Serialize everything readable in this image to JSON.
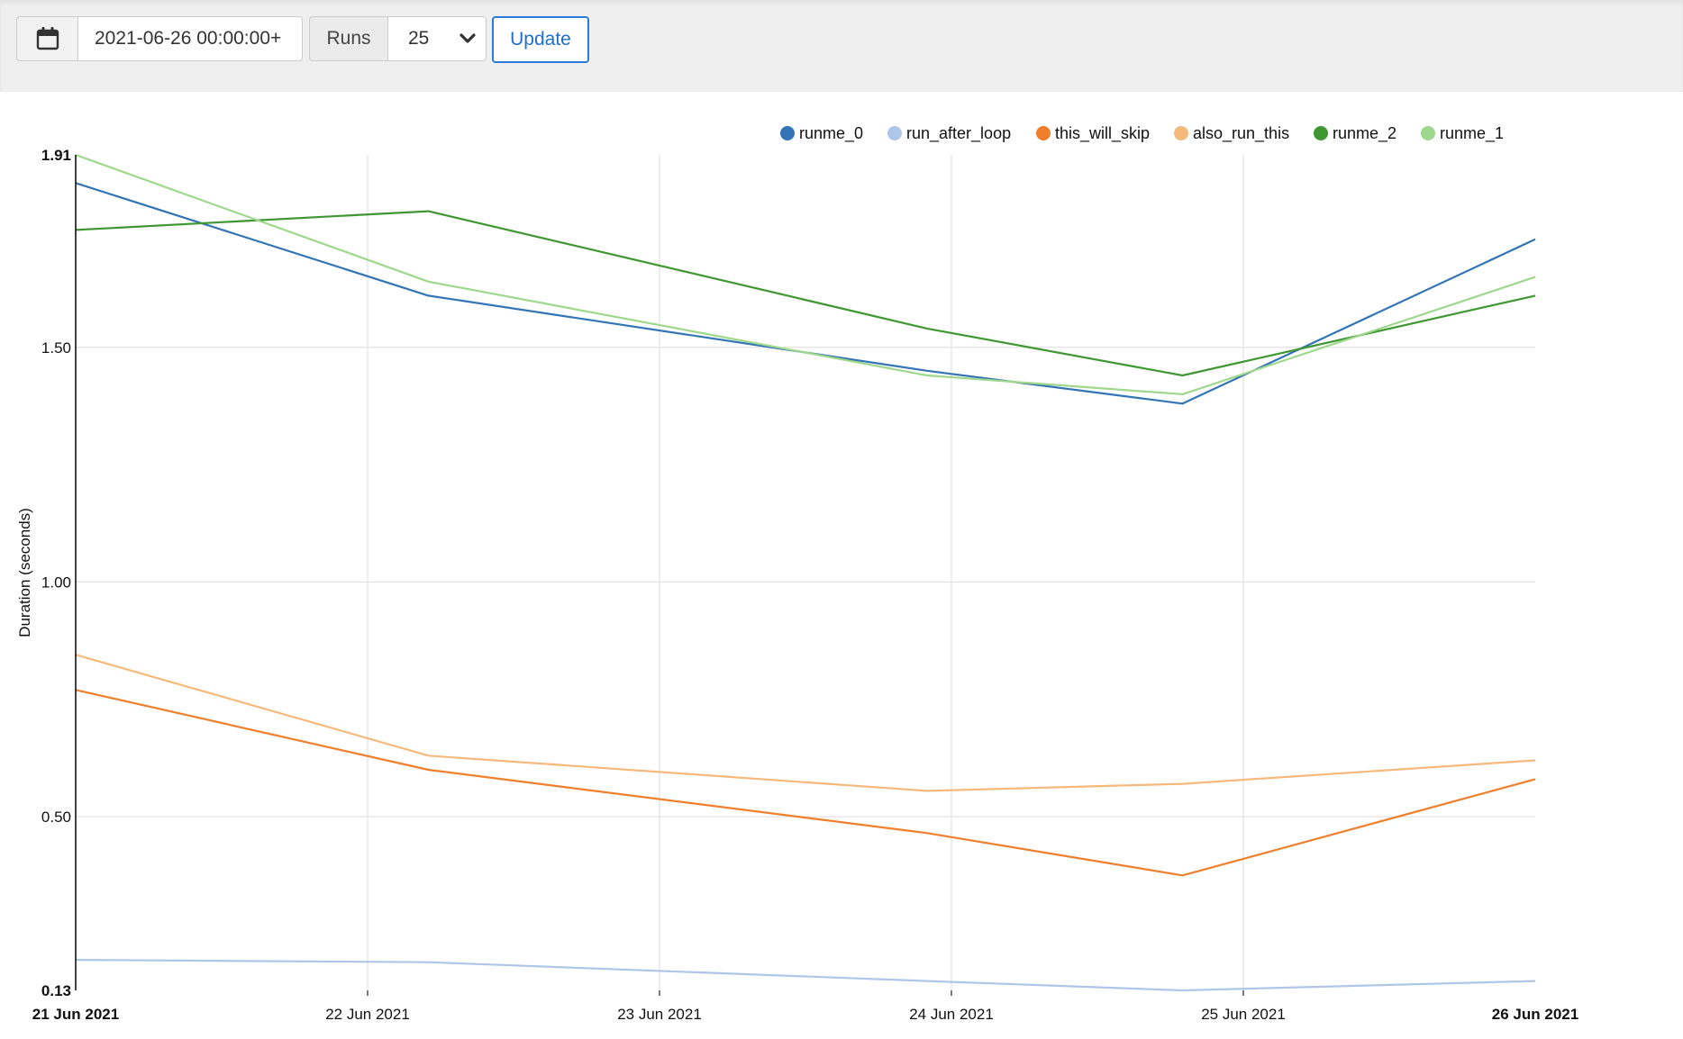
{
  "toolbar": {
    "date_value": "2021-06-26 00:00:00+",
    "runs_label": "Runs",
    "runs_value": "25",
    "update_label": "Update",
    "calendar_icon": "calendar-icon",
    "chevron_icon": "chevron-down-icon"
  },
  "chart_data": {
    "type": "line",
    "title": "",
    "xlabel": "",
    "ylabel": "Duration (seconds)",
    "ylim": [
      0.13,
      1.91
    ],
    "yticks": [
      {
        "value": 1.91,
        "label": "1.91",
        "bold": true
      },
      {
        "value": 1.5,
        "label": "1.50",
        "bold": false
      },
      {
        "value": 1.0,
        "label": "1.00",
        "bold": false
      },
      {
        "value": 0.5,
        "label": "0.50",
        "bold": false
      },
      {
        "value": 0.13,
        "label": "0.13",
        "bold": true
      }
    ],
    "xlim": [
      "2021-06-21T00:00",
      "2021-06-26T00:00"
    ],
    "xticks": [
      {
        "value": "2021-06-21T00:00",
        "label": "21 Jun 2021",
        "bold": true
      },
      {
        "value": "2021-06-22T00:00",
        "label": "22 Jun 2021",
        "bold": false
      },
      {
        "value": "2021-06-23T00:00",
        "label": "23 Jun 2021",
        "bold": false
      },
      {
        "value": "2021-06-24T00:00",
        "label": "24 Jun 2021",
        "bold": false
      },
      {
        "value": "2021-06-25T00:00",
        "label": "25 Jun 2021",
        "bold": false
      },
      {
        "value": "2021-06-26T00:00",
        "label": "26 Jun 2021",
        "bold": true
      }
    ],
    "grid": true,
    "legend_position": "top-right",
    "x": [
      "2021-06-21T00:00",
      "2021-06-22T05:00",
      "2021-06-23T22:00",
      "2021-06-24T19:00",
      "2021-06-26T00:00"
    ],
    "series": [
      {
        "name": "runme_0",
        "color": "#3274b5",
        "values": [
          1.85,
          1.61,
          1.45,
          1.38,
          1.73
        ]
      },
      {
        "name": "run_after_loop",
        "color": "#aec7e8",
        "values": [
          0.195,
          0.19,
          0.15,
          0.13,
          0.15
        ]
      },
      {
        "name": "this_will_skip",
        "color": "#f07f2c",
        "values": [
          0.77,
          0.6,
          0.465,
          0.375,
          0.58
        ]
      },
      {
        "name": "also_run_this",
        "color": "#f5b97b",
        "values": [
          0.845,
          0.63,
          0.555,
          0.57,
          0.62
        ]
      },
      {
        "name": "runme_2",
        "color": "#3f9732",
        "values": [
          1.75,
          1.79,
          1.54,
          1.44,
          1.61
        ]
      },
      {
        "name": "runme_1",
        "color": "#9fd88c",
        "values": [
          1.91,
          1.64,
          1.44,
          1.4,
          1.65
        ]
      }
    ]
  }
}
